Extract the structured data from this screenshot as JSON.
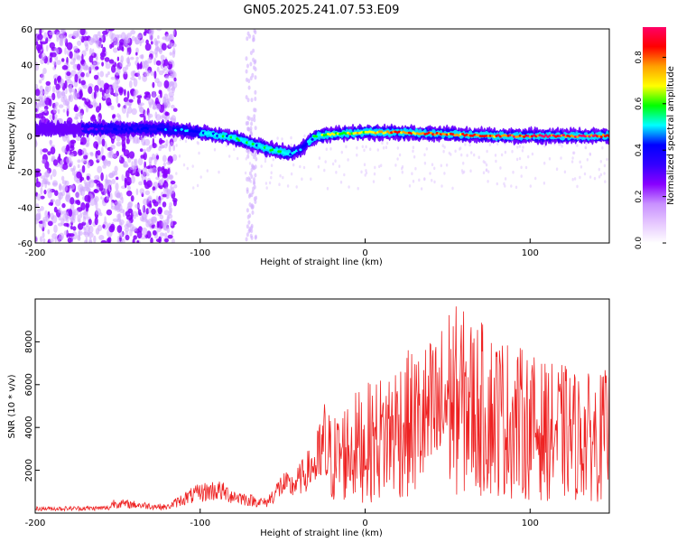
{
  "title": "GN05.2025.241.07.53.E09",
  "chart_data": [
    {
      "type": "heatmap",
      "xlabel": "Height of straight line (km)",
      "ylabel": "Frequency (Hz)",
      "xlim": [
        -200,
        148
      ],
      "ylim": [
        -60,
        60
      ],
      "xticks": [
        -200,
        -100,
        0,
        100
      ],
      "yticks": [
        -60,
        -40,
        -20,
        0,
        20,
        40,
        60
      ],
      "colorbar": {
        "label": "Normalized spectral amplitude",
        "range": [
          0,
          0.93
        ],
        "ticks": [
          0,
          0.2,
          0.4,
          0.6,
          0.8
        ],
        "colors": [
          "#ffffff",
          "#e6c8ff",
          "#c890ff",
          "#8800ff",
          "#3300ff",
          "#0000ff",
          "#00ffff",
          "#00ff00",
          "#ffff00",
          "#ffa000",
          "#ff0000",
          "#ff0066"
        ]
      },
      "ridge": {
        "x": [
          -200,
          -160,
          -120,
          -100,
          -80,
          -70,
          -60,
          -50,
          -45,
          -40,
          -35,
          -30,
          -20,
          0,
          20,
          50,
          80,
          100,
          120,
          148
        ],
        "freq": [
          4,
          4,
          4,
          2,
          -1,
          -4,
          -7,
          -9,
          -10,
          -8,
          -4,
          0,
          1,
          2,
          2,
          1,
          0,
          0,
          0,
          0
        ],
        "amplitude": [
          0.18,
          0.35,
          0.45,
          0.5,
          0.55,
          0.55,
          0.6,
          0.55,
          0.5,
          0.45,
          0.5,
          0.6,
          0.7,
          0.75,
          0.85,
          0.85,
          0.88,
          0.9,
          0.92,
          0.93
        ]
      },
      "noise_region_x": [
        -200,
        -115
      ]
    },
    {
      "type": "line",
      "xlabel": "Height of straight line (km)",
      "ylabel": "SNR (10 * v/v)",
      "xlim": [
        -200,
        148
      ],
      "ylim": [
        0,
        10000
      ],
      "xticks": [
        -200,
        -100,
        0,
        100
      ],
      "yticks": [
        2000,
        4000,
        6000,
        8000
      ],
      "line_color": "#ee2222",
      "envelope": {
        "x": [
          -200,
          -155,
          -153,
          -120,
          -110,
          -100,
          -90,
          -80,
          -70,
          -60,
          -50,
          -45,
          -40,
          -30,
          -25,
          -20,
          -10,
          0,
          10,
          20,
          30,
          45,
          50,
          60,
          70,
          80,
          90,
          100,
          110,
          120,
          130,
          140,
          148
        ],
        "peak": [
          300,
          350,
          700,
          400,
          1000,
          1400,
          1600,
          1200,
          900,
          700,
          2000,
          1800,
          2300,
          3500,
          5500,
          4500,
          5500,
          6000,
          6500,
          7500,
          7700,
          8500,
          10000,
          9500,
          9000,
          8500,
          8000,
          7500,
          7000,
          7000,
          6600,
          6500,
          6800
        ]
      }
    }
  ]
}
